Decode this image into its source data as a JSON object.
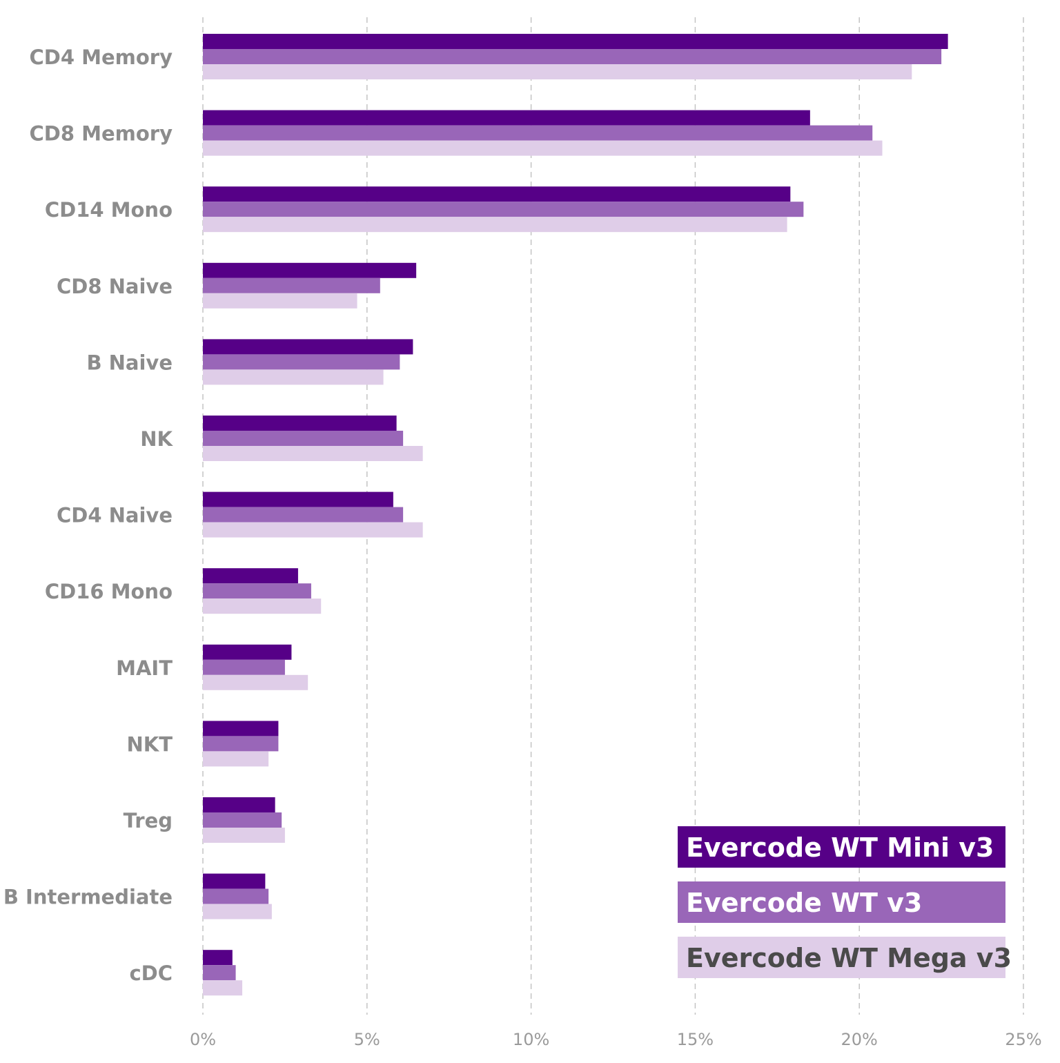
{
  "chart_data": {
    "type": "bar",
    "orientation": "horizontal",
    "title": "",
    "xlabel": "",
    "ylabel": "",
    "xlim": [
      0,
      25
    ],
    "x_ticks": [
      0,
      5,
      10,
      15,
      20,
      25
    ],
    "x_tick_labels": [
      "0%",
      "5%",
      "10%",
      "15%",
      "20%",
      "25%"
    ],
    "grid": "vertical dashed",
    "legend_placement": "bottom-right",
    "categories": [
      "CD4 Memory",
      "CD8 Memory",
      "CD14 Mono",
      "CD8 Naive",
      "B Naive",
      "NK",
      "CD4 Naive",
      "CD16 Mono",
      "MAIT",
      "NKT",
      "Treg",
      "B Intermediate",
      "cDC"
    ],
    "series": [
      {
        "name": "Evercode WT Mini v3",
        "color": "#560087",
        "legend_text_color": "#ffffff",
        "values": [
          22.7,
          18.5,
          17.9,
          6.5,
          6.4,
          5.9,
          5.8,
          2.9,
          2.7,
          2.3,
          2.2,
          1.9,
          0.9
        ]
      },
      {
        "name": "Evercode WT v3",
        "color": "#9966b8",
        "legend_text_color": "#ffffff",
        "values": [
          22.5,
          20.4,
          18.3,
          5.4,
          6.0,
          6.1,
          6.1,
          3.3,
          2.5,
          2.3,
          2.4,
          2.0,
          1.0
        ]
      },
      {
        "name": "Evercode WT Mega v3",
        "color": "#dfcde8",
        "legend_text_color": "#4a4a4a",
        "values": [
          21.6,
          20.7,
          17.8,
          4.7,
          5.5,
          6.7,
          6.7,
          3.6,
          3.2,
          2.0,
          2.5,
          2.1,
          1.2
        ]
      }
    ]
  }
}
